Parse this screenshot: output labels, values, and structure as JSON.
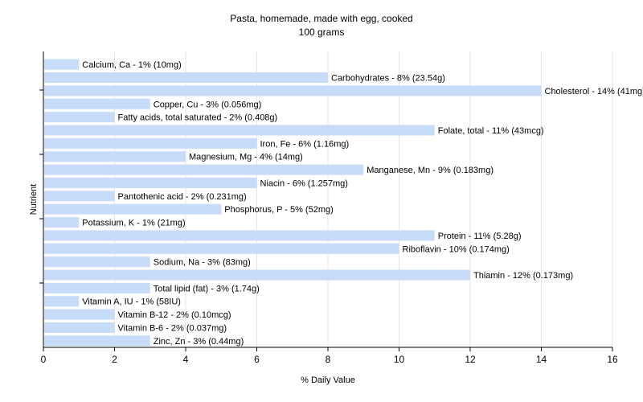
{
  "chart_data": {
    "type": "bar",
    "orientation": "horizontal",
    "title": "Pasta, homemade, made with egg, cooked",
    "subtitle": "100 grams",
    "xlabel": "% Daily Value",
    "ylabel": "Nutrient",
    "xlim": [
      0,
      16
    ],
    "xticks": [
      "0",
      "2",
      "4",
      "6",
      "8",
      "10",
      "12",
      "14",
      "16"
    ],
    "grid": true,
    "bar_color": "#c6dcf8",
    "bars": [
      {
        "value": 1,
        "label": "Calcium, Ca - 1% (10mg)"
      },
      {
        "value": 8,
        "label": "Carbohydrates - 8% (23.54g)"
      },
      {
        "value": 14,
        "label": "Cholesterol - 14% (41mg)"
      },
      {
        "value": 3,
        "label": "Copper, Cu - 3% (0.056mg)"
      },
      {
        "value": 2,
        "label": "Fatty acids, total saturated - 2% (0.408g)"
      },
      {
        "value": 11,
        "label": "Folate, total - 11% (43mcg)"
      },
      {
        "value": 6,
        "label": "Iron, Fe - 6% (1.16mg)"
      },
      {
        "value": 4,
        "label": "Magnesium, Mg - 4% (14mg)"
      },
      {
        "value": 9,
        "label": "Manganese, Mn - 9% (0.183mg)"
      },
      {
        "value": 6,
        "label": "Niacin - 6% (1.257mg)"
      },
      {
        "value": 2,
        "label": "Pantothenic acid - 2% (0.231mg)"
      },
      {
        "value": 5,
        "label": "Phosphorus, P - 5% (52mg)"
      },
      {
        "value": 1,
        "label": "Potassium, K - 1% (21mg)"
      },
      {
        "value": 11,
        "label": "Protein - 11% (5.28g)"
      },
      {
        "value": 10,
        "label": "Riboflavin - 10% (0.174mg)"
      },
      {
        "value": 3,
        "label": "Sodium, Na - 3% (83mg)"
      },
      {
        "value": 12,
        "label": "Thiamin - 12% (0.173mg)"
      },
      {
        "value": 3,
        "label": "Total lipid (fat) - 3% (1.74g)"
      },
      {
        "value": 1,
        "label": "Vitamin A, IU - 1% (58IU)"
      },
      {
        "value": 2,
        "label": "Vitamin B-12 - 2% (0.10mcg)"
      },
      {
        "value": 2,
        "label": "Vitamin B-6 - 2% (0.037mg)"
      },
      {
        "value": 3,
        "label": "Zinc, Zn - 3% (0.44mg)"
      }
    ]
  }
}
